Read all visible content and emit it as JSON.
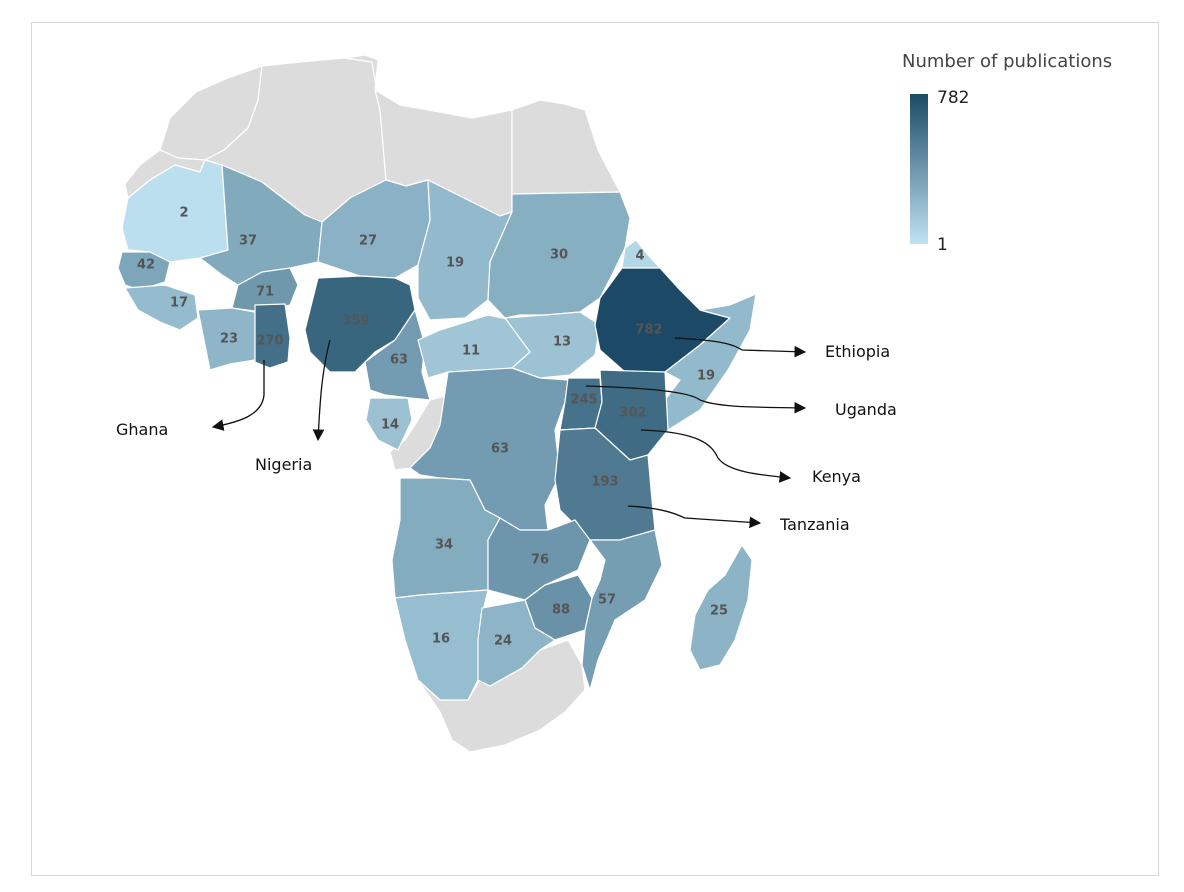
{
  "legend": {
    "title": "Number of publications",
    "max_label": "782",
    "min_label": "1",
    "color_min": "#bfe3f2",
    "color_max": "#1c4a66"
  },
  "no_data_color": "#dcdcdc",
  "countries": [
    {
      "id": "mauritania",
      "value": "2",
      "n": 2
    },
    {
      "id": "mali",
      "value": "37",
      "n": 37
    },
    {
      "id": "niger",
      "value": "27",
      "n": 27
    },
    {
      "id": "chad",
      "value": "19",
      "n": 19
    },
    {
      "id": "sudan",
      "value": "30",
      "n": 30
    },
    {
      "id": "eritrea",
      "value": "4",
      "n": 4
    },
    {
      "id": "senegal",
      "value": "42",
      "n": 42
    },
    {
      "id": "guinea",
      "value": "17",
      "n": 17
    },
    {
      "id": "burkina-faso",
      "value": "71",
      "n": 71
    },
    {
      "id": "cote-divoire",
      "value": "23",
      "n": 23
    },
    {
      "id": "ghana",
      "value": "270",
      "n": 270
    },
    {
      "id": "nigeria",
      "value": "359",
      "n": 359
    },
    {
      "id": "cameroon",
      "value": "63",
      "n": 63
    },
    {
      "id": "central-african-republic",
      "value": "11",
      "n": 11
    },
    {
      "id": "south-sudan",
      "value": "13",
      "n": 13
    },
    {
      "id": "ethiopia",
      "value": "782",
      "n": 782
    },
    {
      "id": "somalia",
      "value": "19",
      "n": 19
    },
    {
      "id": "gabon",
      "value": "14",
      "n": 14
    },
    {
      "id": "dr-congo",
      "value": "63",
      "n": 63
    },
    {
      "id": "uganda",
      "value": "245",
      "n": 245
    },
    {
      "id": "kenya",
      "value": "302",
      "n": 302
    },
    {
      "id": "tanzania",
      "value": "193",
      "n": 193
    },
    {
      "id": "angola",
      "value": "34",
      "n": 34
    },
    {
      "id": "zambia",
      "value": "76",
      "n": 76
    },
    {
      "id": "zimbabwe",
      "value": "88",
      "n": 88
    },
    {
      "id": "mozambique",
      "value": "57",
      "n": 57
    },
    {
      "id": "madagascar",
      "value": "25",
      "n": 25
    },
    {
      "id": "namibia",
      "value": "16",
      "n": 16
    },
    {
      "id": "botswana",
      "value": "24",
      "n": 24
    }
  ],
  "callouts": [
    {
      "id": "ethiopia",
      "label": "Ethiopia"
    },
    {
      "id": "uganda",
      "label": "Uganda"
    },
    {
      "id": "kenya",
      "label": "Kenya"
    },
    {
      "id": "tanzania",
      "label": "Tanzania"
    },
    {
      "id": "ghana",
      "label": "Ghana"
    },
    {
      "id": "nigeria",
      "label": "Nigeria"
    }
  ]
}
